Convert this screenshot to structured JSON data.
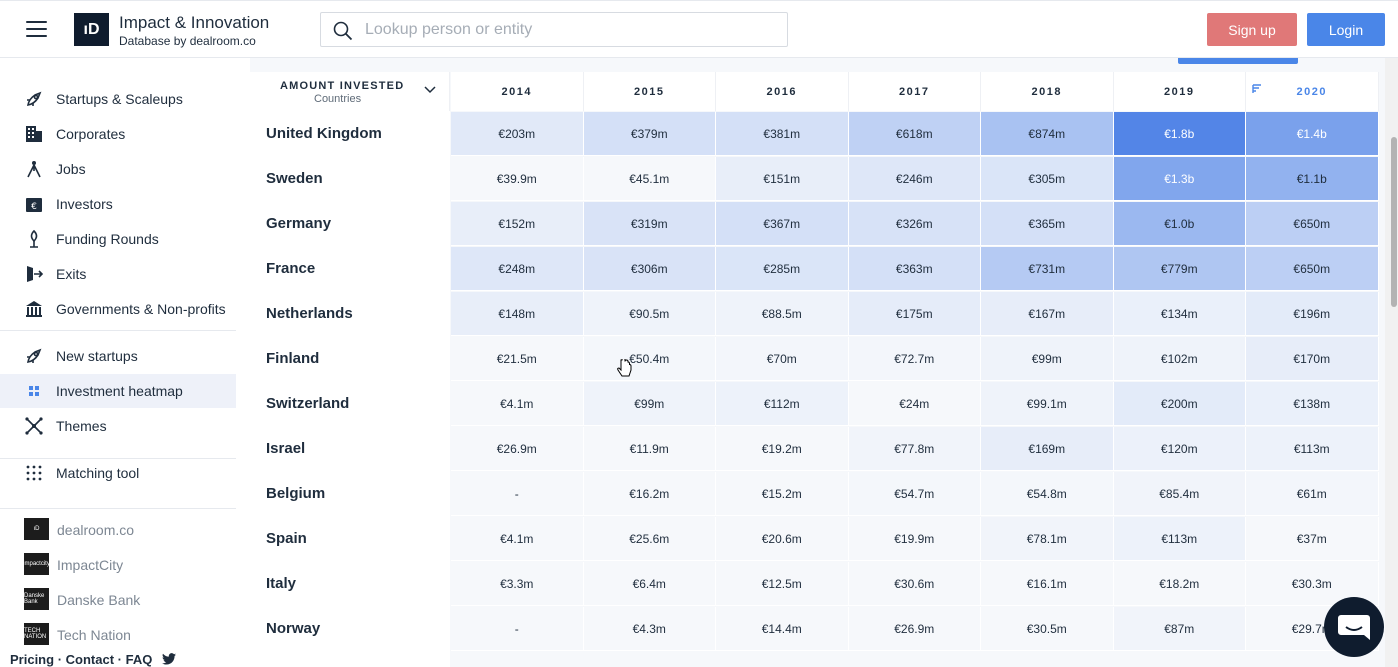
{
  "header": {
    "brand_title": "Impact & Innovation",
    "brand_subtitle": "Database by dealroom.co",
    "logo_text": "ıD",
    "search_placeholder": "Lookup person or entity",
    "signup_label": "Sign up",
    "login_label": "Login"
  },
  "sidebar": {
    "group1": [
      {
        "label": "Startups & Scaleups",
        "icon": "rocket-icon"
      },
      {
        "label": "Corporates",
        "icon": "building-icon"
      },
      {
        "label": "Jobs",
        "icon": "jobs-icon"
      },
      {
        "label": "Investors",
        "icon": "wallet-icon"
      },
      {
        "label": "Funding Rounds",
        "icon": "funding-icon"
      },
      {
        "label": "Exits",
        "icon": "exit-icon"
      },
      {
        "label": "Governments & Non-profits",
        "icon": "government-icon"
      }
    ],
    "group2": [
      {
        "label": "New startups",
        "icon": "rocket-icon"
      },
      {
        "label": "Investment heatmap",
        "icon": "grid-icon",
        "active": true
      },
      {
        "label": "Themes",
        "icon": "themes-icon"
      }
    ],
    "group3": [
      {
        "label": "Matching tool",
        "icon": "dots-icon"
      }
    ],
    "partners": [
      {
        "label": "dealroom.co",
        "logo": "ıD"
      },
      {
        "label": "ImpactCity",
        "logo": "impactcity"
      },
      {
        "label": "Danske Bank",
        "logo": "Danske Bank"
      },
      {
        "label": "Tech Nation",
        "logo": "TECH NATION"
      }
    ],
    "footer": {
      "pricing": "Pricing",
      "contact": "Contact",
      "faq": "FAQ",
      "sep": " · "
    }
  },
  "table": {
    "metric_title": "AMOUNT INVESTED",
    "metric_subtitle": "Countries",
    "years": [
      "2014",
      "2015",
      "2016",
      "2017",
      "2018",
      "2019",
      "2020"
    ],
    "sorted_year": "2020",
    "rows": [
      {
        "country": "United Kingdom",
        "values": [
          "€203m",
          "€379m",
          "€381m",
          "€618m",
          "€874m",
          "€1.8b",
          "€1.4b"
        ],
        "shades": [
          0.12,
          0.2,
          0.2,
          0.32,
          0.45,
          0.95,
          0.72
        ]
      },
      {
        "country": "Sweden",
        "values": [
          "€39.9m",
          "€45.1m",
          "€151m",
          "€246m",
          "€305m",
          "€1.3b",
          "€1.1b"
        ],
        "shades": [
          0.0,
          0.0,
          0.08,
          0.14,
          0.16,
          0.68,
          0.58
        ]
      },
      {
        "country": "Germany",
        "values": [
          "€152m",
          "€319m",
          "€367m",
          "€326m",
          "€365m",
          "€1.0b",
          "€650m"
        ],
        "shades": [
          0.08,
          0.17,
          0.2,
          0.18,
          0.2,
          0.53,
          0.34
        ]
      },
      {
        "country": "France",
        "values": [
          "€248m",
          "€306m",
          "€285m",
          "€363m",
          "€731m",
          "€779m",
          "€650m"
        ],
        "shades": [
          0.14,
          0.17,
          0.16,
          0.2,
          0.38,
          0.41,
          0.34
        ]
      },
      {
        "country": "Netherlands",
        "values": [
          "€148m",
          "€90.5m",
          "€88.5m",
          "€175m",
          "€167m",
          "€134m",
          "€196m"
        ],
        "shades": [
          0.08,
          0.04,
          0.04,
          0.1,
          0.09,
          0.07,
          0.11
        ]
      },
      {
        "country": "Finland",
        "values": [
          "€21.5m",
          "€50.4m",
          "€70m",
          "€72.7m",
          "€99m",
          "€102m",
          "€170m"
        ],
        "shades": [
          0.0,
          0.01,
          0.02,
          0.02,
          0.04,
          0.04,
          0.09
        ]
      },
      {
        "country": "Switzerland",
        "values": [
          "€4.1m",
          "€99m",
          "€112m",
          "€24m",
          "€99.1m",
          "€200m",
          "€138m"
        ],
        "shades": [
          0.0,
          0.04,
          0.05,
          0.0,
          0.04,
          0.11,
          0.07
        ]
      },
      {
        "country": "Israel",
        "values": [
          "€26.9m",
          "€11.9m",
          "€19.2m",
          "€77.8m",
          "€169m",
          "€120m",
          "€113m"
        ],
        "shades": [
          0.0,
          0.0,
          0.0,
          0.03,
          0.09,
          0.06,
          0.05
        ]
      },
      {
        "country": "Belgium",
        "values": [
          "-",
          "€16.2m",
          "€15.2m",
          "€54.7m",
          "€54.8m",
          "€85.4m",
          "€61m"
        ],
        "shades": [
          0.0,
          0.0,
          0.0,
          0.01,
          0.01,
          0.03,
          0.02
        ]
      },
      {
        "country": "Spain",
        "values": [
          "€4.1m",
          "€25.6m",
          "€20.6m",
          "€19.9m",
          "€78.1m",
          "€113m",
          "€37m"
        ],
        "shades": [
          0.0,
          0.0,
          0.0,
          0.0,
          0.03,
          0.05,
          0.0
        ]
      },
      {
        "country": "Italy",
        "values": [
          "€3.3m",
          "€6.4m",
          "€12.5m",
          "€30.6m",
          "€16.1m",
          "€18.2m",
          "€30.3m"
        ],
        "shades": [
          0.0,
          0.0,
          0.0,
          0.0,
          0.0,
          0.0,
          0.0
        ]
      },
      {
        "country": "Norway",
        "values": [
          "-",
          "€4.3m",
          "€14.4m",
          "€26.9m",
          "€30.5m",
          "€87m",
          "€29.7m"
        ],
        "shades": [
          0.0,
          0.0,
          0.0,
          0.0,
          0.0,
          0.03,
          0.0
        ]
      }
    ]
  },
  "colors": {
    "heat_low": "#f6f8fb",
    "heat_high": "#4a7fe6",
    "accent": "#4a86e8",
    "signup": "#e07878",
    "navy": "#0f1c2e"
  }
}
